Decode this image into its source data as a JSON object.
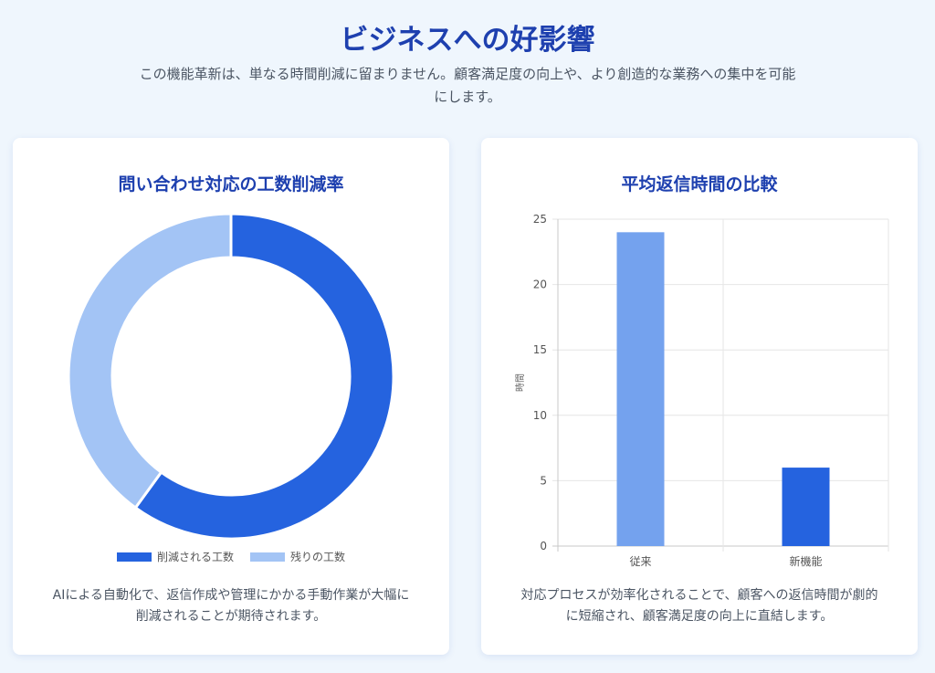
{
  "header": {
    "title": "ビジネスへの好影響",
    "subtitle_line1": "この機能革新は、単なる時間削減に留まりません。顧客満足度の向上や、より創造的な業務への集中を可能",
    "subtitle_line2": "にします。"
  },
  "left_card": {
    "description_line1": "AIによる自動化で、返信作成や管理にかかる手動作業が大幅に",
    "description_line2": "削減されることが期待されます。"
  },
  "right_card": {
    "description_line1": "対応プロセスが効率化されることで、顧客への返信時間が劇的",
    "description_line2": "に短縮され、顧客満足度の向上に直結します。"
  },
  "chart_data": [
    {
      "type": "pie",
      "variant": "doughnut",
      "title": "問い合わせ対応の工数削減率",
      "labels": [
        "削減される工数",
        "残りの工数"
      ],
      "values": [
        60,
        40
      ],
      "colors": [
        "#2563df",
        "#a3c4f5"
      ],
      "legend": "bottom"
    },
    {
      "type": "bar",
      "title": "平均返信時間の比較",
      "categories": [
        "従来",
        "新機能"
      ],
      "values": [
        24,
        6
      ],
      "colors": [
        "#74a2ee",
        "#2563df"
      ],
      "xlabel": "",
      "ylabel": "時間",
      "ylim": [
        0,
        25
      ],
      "yticks": [
        0,
        5,
        10,
        15,
        20,
        25
      ],
      "grid": true
    }
  ]
}
